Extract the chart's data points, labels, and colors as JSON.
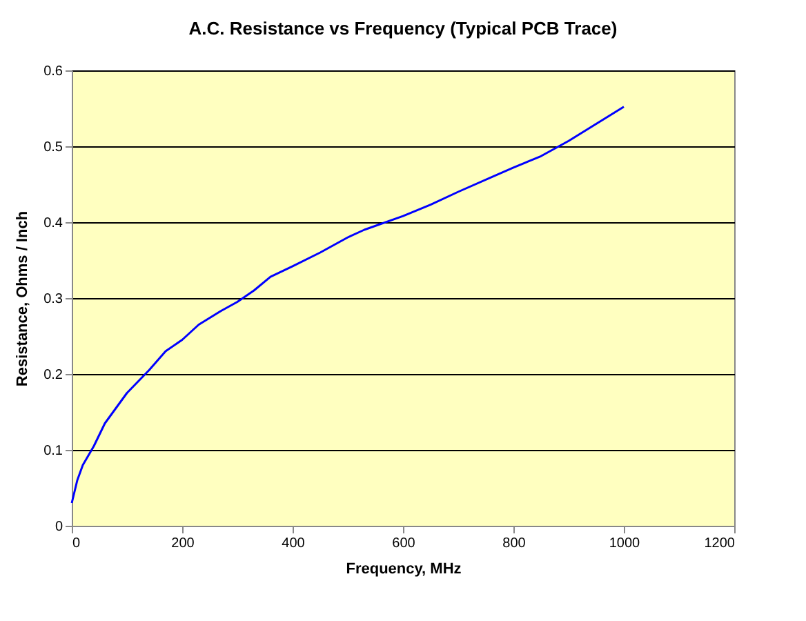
{
  "chart_data": {
    "type": "line",
    "title": "A.C. Resistance vs Frequency (Typical PCB Trace)",
    "xlabel": "Frequency, MHz",
    "ylabel": "Resistance, Ohms / Inch",
    "x": [
      0,
      10,
      20,
      40,
      60,
      80,
      100,
      140,
      170,
      200,
      230,
      270,
      300,
      330,
      360,
      400,
      450,
      500,
      530,
      600,
      650,
      700,
      800,
      850,
      900,
      1000
    ],
    "series": [
      {
        "color": "#0000ff",
        "values": [
          0.03,
          0.06,
          0.08,
          0.105,
          0.135,
          0.155,
          0.175,
          0.205,
          0.23,
          0.245,
          0.265,
          0.283,
          0.295,
          0.31,
          0.328,
          0.342,
          0.36,
          0.38,
          0.39,
          0.408,
          0.423,
          0.44,
          0.472,
          0.487,
          0.507,
          0.552
        ]
      }
    ],
    "xlim": [
      0,
      1200
    ],
    "xticks": [
      0,
      200,
      400,
      600,
      800,
      1000,
      1200
    ],
    "ylim": [
      0,
      0.6
    ],
    "yticks": [
      0,
      0.1,
      0.2,
      0.3,
      0.4,
      0.5,
      0.6
    ],
    "grid": "y",
    "legend": false,
    "marker": "none",
    "line_style": "solid"
  }
}
